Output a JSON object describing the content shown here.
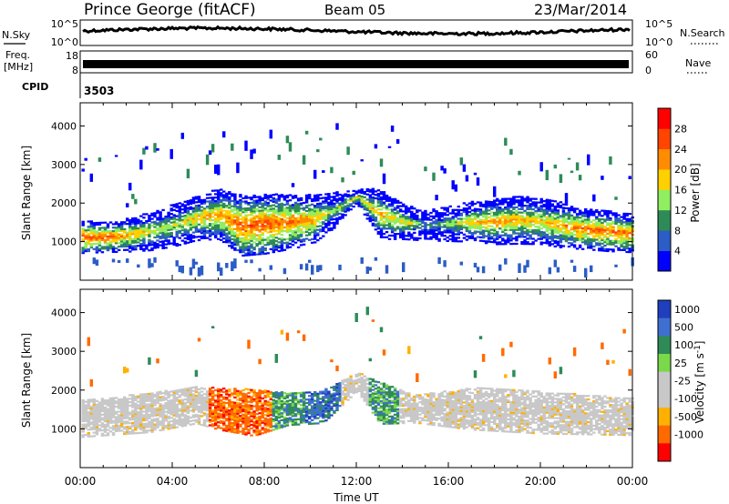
{
  "header": {
    "station": "Prince George (fitACF)",
    "beam": "Beam 05",
    "date": "23/Mar/2014"
  },
  "panels": {
    "nsky": {
      "left_label": "N.Sky",
      "y_ticks": [
        "10^5",
        "10^0"
      ],
      "right_ticks": [
        "10^5",
        "10^0"
      ],
      "right_label": "N.Search"
    },
    "freq": {
      "left_label_line1": "Freq.",
      "left_label_line2": "[MHz]",
      "y_ticks": [
        "18",
        "8"
      ],
      "right_ticks": [
        "60",
        "0"
      ],
      "right_label": "Nave"
    },
    "cpid": {
      "label": "CPID",
      "value": "3503"
    }
  },
  "chart_data": [
    {
      "type": "heatmap",
      "title": "",
      "xlabel": "Time UT",
      "ylabel": "Slant Range [km]",
      "x_ticks": [
        "00:00",
        "04:00",
        "08:00",
        "12:00",
        "16:00",
        "20:00",
        "00:00"
      ],
      "x_range_hours": [
        0,
        24
      ],
      "y_ticks": [
        1000,
        2000,
        3000,
        4000
      ],
      "ylim": [
        0,
        4600
      ],
      "colorbar": {
        "label": "Power [dB]",
        "ticks": [
          4,
          8,
          12,
          16,
          20,
          24,
          28
        ],
        "range": [
          0,
          32
        ],
        "colors": [
          "#0000ff",
          "#2c5cc5",
          "#2e8b57",
          "#90ee60",
          "#ffd000",
          "#ff8c00",
          "#ff4500",
          "#ff0000"
        ]
      },
      "bands": [
        {
          "t": 0.0,
          "center": 1100,
          "half": 320,
          "power": 26
        },
        {
          "t": 1.0,
          "center": 1100,
          "half": 300,
          "power": 25
        },
        {
          "t": 2.0,
          "center": 1150,
          "half": 330,
          "power": 22
        },
        {
          "t": 3.0,
          "center": 1250,
          "half": 380,
          "power": 18
        },
        {
          "t": 4.0,
          "center": 1400,
          "half": 420,
          "power": 16
        },
        {
          "t": 5.0,
          "center": 1600,
          "half": 450,
          "power": 20
        },
        {
          "t": 6.0,
          "center": 1700,
          "half": 500,
          "power": 22
        },
        {
          "t": 7.0,
          "center": 1400,
          "half": 600,
          "power": 26
        },
        {
          "t": 8.0,
          "center": 1450,
          "half": 600,
          "power": 26
        },
        {
          "t": 9.0,
          "center": 1500,
          "half": 550,
          "power": 24
        },
        {
          "t": 10.0,
          "center": 1550,
          "half": 500,
          "power": 22
        },
        {
          "t": 11.0,
          "center": 1800,
          "half": 350,
          "power": 14
        },
        {
          "t": 12.0,
          "center": 2150,
          "half": 150,
          "power": 18
        },
        {
          "t": 13.0,
          "center": 1700,
          "half": 500,
          "power": 20
        },
        {
          "t": 14.0,
          "center": 1500,
          "half": 350,
          "power": 18
        },
        {
          "t": 15.0,
          "center": 1400,
          "half": 300,
          "power": 10
        },
        {
          "t": 16.0,
          "center": 1450,
          "half": 350,
          "power": 14
        },
        {
          "t": 17.0,
          "center": 1500,
          "half": 400,
          "power": 20
        },
        {
          "t": 18.0,
          "center": 1500,
          "half": 450,
          "power": 22
        },
        {
          "t": 19.0,
          "center": 1550,
          "half": 480,
          "power": 20
        },
        {
          "t": 20.0,
          "center": 1500,
          "half": 450,
          "power": 20
        },
        {
          "t": 21.0,
          "center": 1400,
          "half": 450,
          "power": 22
        },
        {
          "t": 22.0,
          "center": 1300,
          "half": 400,
          "power": 24
        },
        {
          "t": 23.0,
          "center": 1250,
          "half": 400,
          "power": 24
        },
        {
          "t": 24.0,
          "center": 1200,
          "half": 380,
          "power": 24
        }
      ]
    },
    {
      "type": "heatmap",
      "title": "",
      "xlabel": "Time UT",
      "ylabel": "Slant Range [km]",
      "x_ticks": [
        "00:00",
        "04:00",
        "08:00",
        "12:00",
        "16:00",
        "20:00",
        "00:00"
      ],
      "x_range_hours": [
        0,
        24
      ],
      "y_ticks": [
        1000,
        2000,
        3000,
        4000
      ],
      "ylim": [
        0,
        4600
      ],
      "colorbar": {
        "label": "Velocity [m s^-1]",
        "ticks": [
          "1000",
          "500",
          "100",
          "25",
          "-25",
          "-100",
          "-500",
          "-1000"
        ],
        "colors": [
          "#1f3fbf",
          "#3f6fd0",
          "#2e8b57",
          "#7bd84a",
          "#c8c8c8",
          "#c8c8c8",
          "#ffb000",
          "#ff6a00",
          "#ff0000"
        ]
      },
      "bands": [
        {
          "t": 0.0,
          "center": 1250,
          "half": 400,
          "vel": "ground"
        },
        {
          "t": 3.0,
          "center": 1400,
          "half": 420,
          "vel": "ground"
        },
        {
          "t": 5.0,
          "center": 1600,
          "half": 400,
          "vel": "ground"
        },
        {
          "t": 6.0,
          "center": 1500,
          "half": 450,
          "vel": "-500"
        },
        {
          "t": 7.5,
          "center": 1400,
          "half": 500,
          "vel": "-500"
        },
        {
          "t": 9.0,
          "center": 1500,
          "half": 350,
          "vel": "100"
        },
        {
          "t": 10.5,
          "center": 1550,
          "half": 350,
          "vel": "500"
        },
        {
          "t": 12.0,
          "center": 2200,
          "half": 200,
          "vel": "ground"
        },
        {
          "t": 13.0,
          "center": 1650,
          "half": 450,
          "vel": "100"
        },
        {
          "t": 14.5,
          "center": 1500,
          "half": 300,
          "vel": "ground"
        },
        {
          "t": 17.0,
          "center": 1500,
          "half": 450,
          "vel": "ground"
        },
        {
          "t": 20.0,
          "center": 1400,
          "half": 450,
          "vel": "ground"
        },
        {
          "t": 24.0,
          "center": 1300,
          "half": 400,
          "vel": "ground"
        }
      ]
    }
  ]
}
